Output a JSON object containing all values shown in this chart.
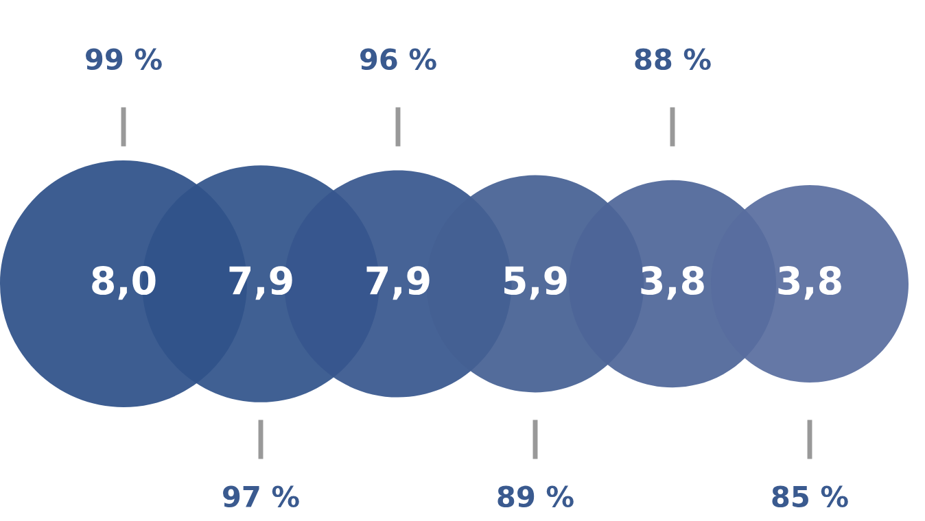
{
  "chart_data": {
    "type": "other",
    "data_labels": true,
    "categories": [
      null,
      null,
      null,
      null,
      null,
      null
    ],
    "values": [
      8.0,
      7.9,
      7.9,
      5.9,
      3.8,
      3.8
    ],
    "value_labels": [
      "8,0",
      "7,9",
      "7,9",
      "5,9",
      "3,8",
      "3,8"
    ],
    "colors": [
      "#2d4f88",
      "#30528a",
      "#36568d",
      "#445f93",
      "#4d6598",
      "#586d9e"
    ],
    "annotations": [
      "99 %",
      "97 %",
      "96 %",
      "89 %",
      "88 %",
      "85 %"
    ]
  }
}
